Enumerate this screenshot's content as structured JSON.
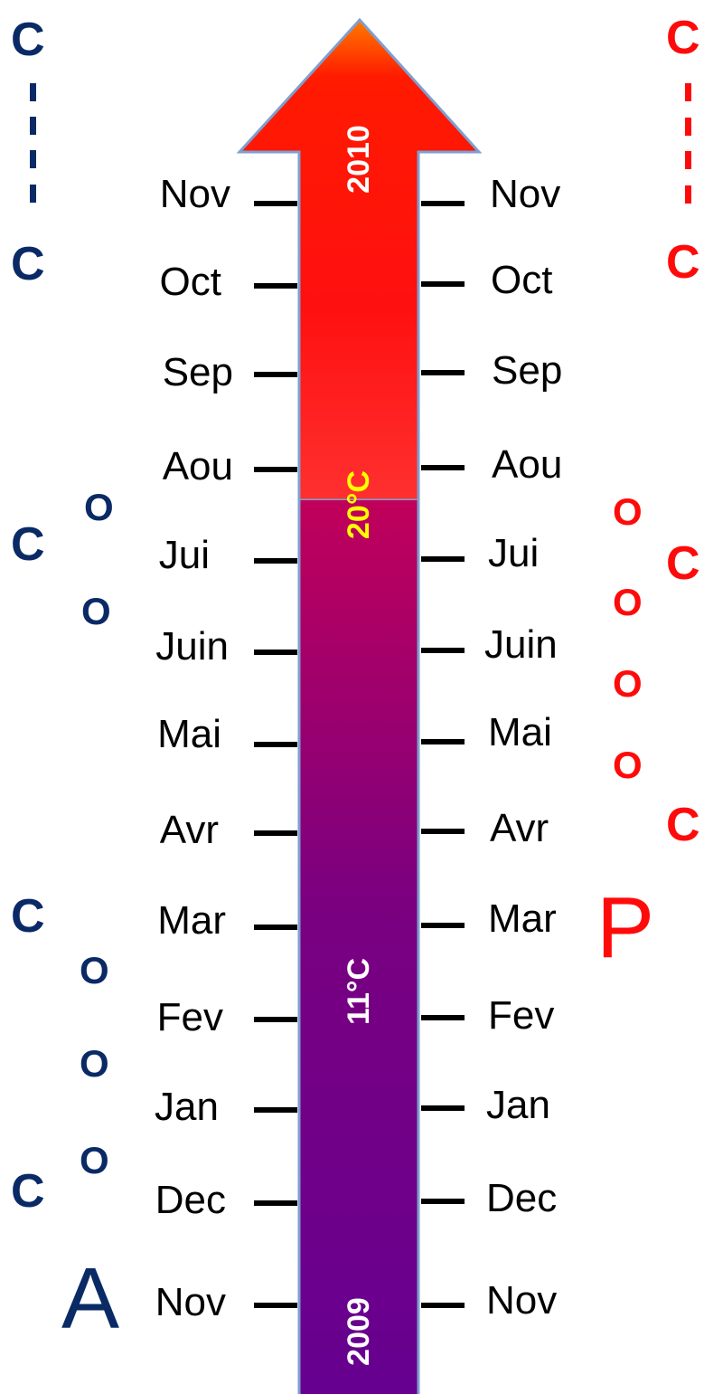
{
  "arrow": {
    "year_top": "2010",
    "year_bottom": "2009",
    "temp_high": "20°C",
    "temp_low": "11°C",
    "colors": {
      "red_top": "#ff0000",
      "orange_tip": "#ff7a00",
      "purple": "#660090",
      "magenta": "#c0005a",
      "temp_high_color": "#ffff00"
    }
  },
  "months": [
    "Nov",
    "Dec",
    "Jan",
    "Fev",
    "Mar",
    "Avr",
    "Mai",
    "Juin",
    "Jui",
    "Aou",
    "Sep",
    "Oct",
    "Nov"
  ],
  "left_column": {
    "symbols": [
      {
        "text": "C"
      },
      {
        "text": "C"
      },
      {
        "text": "C"
      },
      {
        "text": "C"
      },
      {
        "text": "C"
      },
      {
        "text": "O"
      },
      {
        "text": "O"
      },
      {
        "text": "O"
      },
      {
        "text": "O"
      },
      {
        "text": "O"
      }
    ],
    "letter": "A",
    "color": "#0a2a66"
  },
  "right_column": {
    "symbols": [
      {
        "text": "C"
      },
      {
        "text": "C"
      },
      {
        "text": "C"
      },
      {
        "text": "C"
      },
      {
        "text": "O"
      },
      {
        "text": "O"
      },
      {
        "text": "O"
      },
      {
        "text": "O"
      }
    ],
    "letter": "P",
    "color": "#ff0a0a"
  }
}
